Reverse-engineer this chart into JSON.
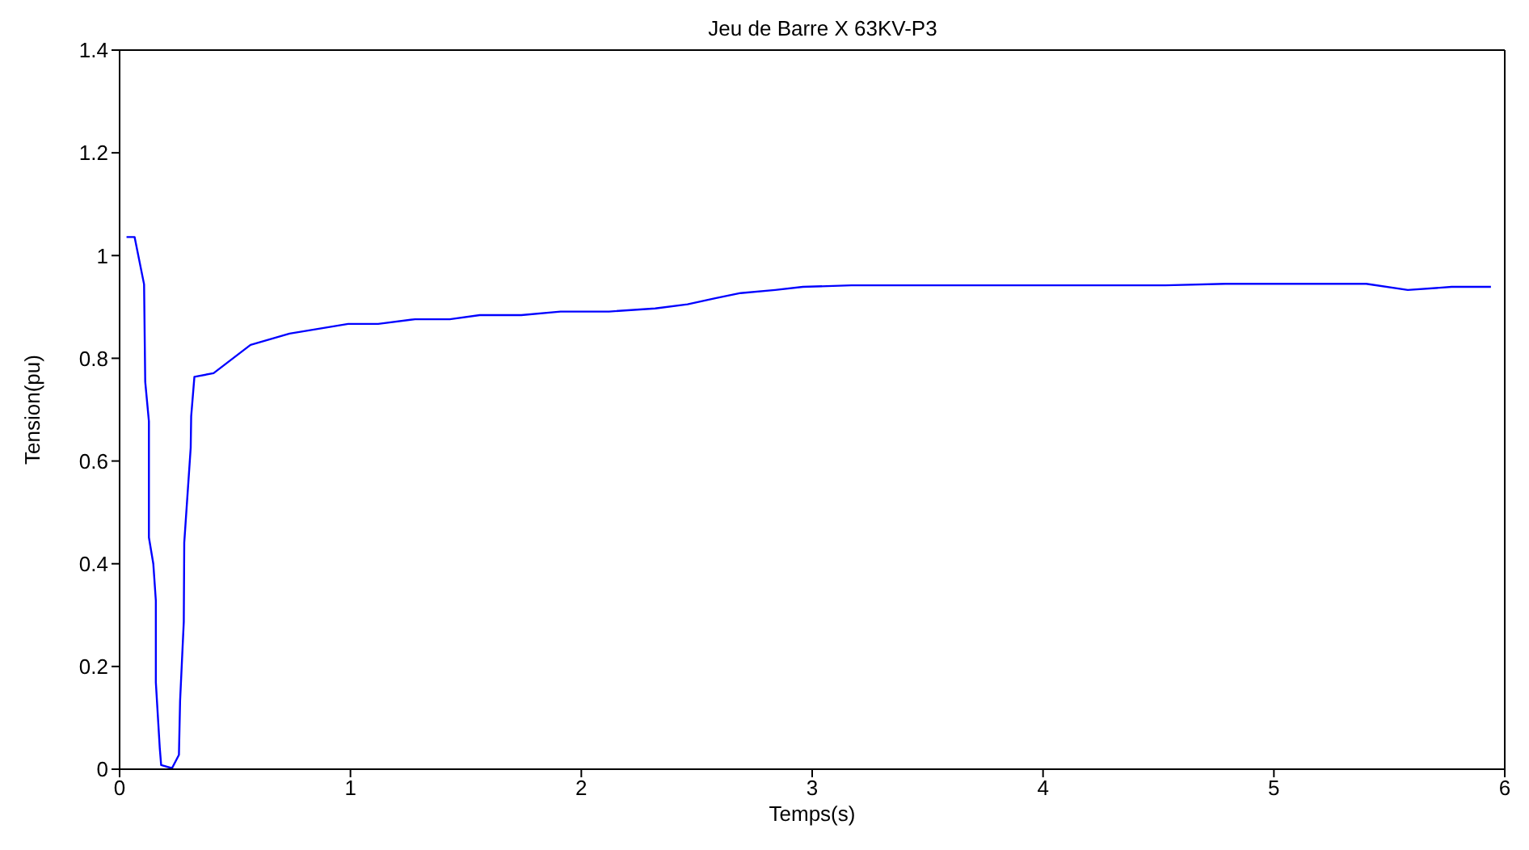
{
  "chart_data": {
    "type": "line",
    "title": "Jeu de Barre X 63KV-P3",
    "xlabel": "Temps(s)",
    "ylabel": "Tension(pu)",
    "xlim": [
      0,
      6
    ],
    "xticks": [
      0,
      1,
      2,
      3,
      4,
      5,
      6
    ],
    "ylim": [
      0,
      1.4
    ],
    "yticks": [
      0,
      0.2,
      0.4,
      0.6,
      0.8,
      1,
      1.2,
      1.4
    ],
    "grid": false,
    "legend": false,
    "marker": "none",
    "line_style": "solid",
    "series": [
      {
        "color": "#0000ff",
        "x": [
          0.03,
          0.065,
          0.106,
          0.111,
          0.127,
          0.127,
          0.146,
          0.157,
          0.157,
          0.174,
          0.18,
          0.227,
          0.257,
          0.262,
          0.278,
          0.28,
          0.308,
          0.31,
          0.324,
          0.407,
          0.567,
          0.736,
          0.99,
          1.12,
          1.28,
          1.43,
          1.56,
          1.74,
          1.91,
          2.12,
          2.32,
          2.46,
          2.58,
          2.69,
          2.84,
          2.96,
          3.17,
          4.53,
          4.79,
          5.4,
          5.58,
          5.77,
          5.94
        ],
        "values": [
          1.036,
          1.036,
          0.944,
          0.754,
          0.677,
          0.451,
          0.4,
          0.328,
          0.169,
          0.041,
          0.008,
          0.002,
          0.028,
          0.133,
          0.287,
          0.441,
          0.626,
          0.687,
          0.764,
          0.771,
          0.826,
          0.848,
          0.867,
          0.867,
          0.876,
          0.876,
          0.884,
          0.884,
          0.891,
          0.891,
          0.897,
          0.905,
          0.917,
          0.927,
          0.933,
          0.939,
          0.942,
          0.942,
          0.945,
          0.945,
          0.933,
          0.939,
          0.939
        ]
      }
    ]
  }
}
